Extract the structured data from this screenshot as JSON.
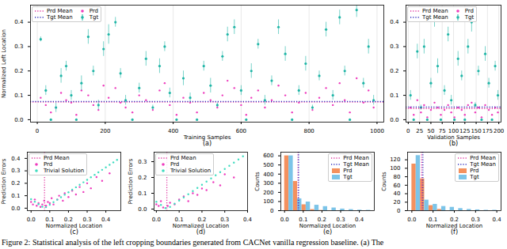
{
  "caption": "Figure 2: Statistical analysis of the left cropping boundaries generated from CACNet vanilla regression baseline. (a) The",
  "chart_data": [
    {
      "type": "scatter",
      "title": "(a)",
      "xlabel": "Training Samples",
      "ylabel": "Normalized Left Location",
      "xlim": [
        -20,
        1020
      ],
      "xticks": [
        0,
        200,
        400,
        600,
        800,
        1000
      ],
      "ylim": [
        -0.01,
        0.47
      ],
      "yticks": [
        {
          "value": 0,
          "label": "0.0"
        },
        0.1,
        0.2,
        0.3,
        0.4
      ],
      "grid": "x",
      "legend": "upper left",
      "series": [
        {
          "name": "Prd Mean",
          "type": "hline",
          "color": "#e0339e",
          "line_style": "dotted",
          "values": [
            0.072
          ]
        },
        {
          "name": "Tgt Mean",
          "type": "hline",
          "color": "#2f2fbf",
          "line_style": "dotted",
          "values": [
            0.075
          ]
        },
        {
          "name": "Prd",
          "type": "scatter",
          "color": "#ee3bbd",
          "marker": "circle",
          "x": [
            10,
            25,
            40,
            55,
            70,
            85,
            100,
            115,
            130,
            150,
            165,
            180,
            195,
            210,
            230,
            245,
            260,
            280,
            300,
            320,
            340,
            360,
            375,
            390,
            410,
            430,
            450,
            470,
            490,
            510,
            530,
            545,
            560,
            580,
            600,
            615,
            630,
            650,
            670,
            690,
            710,
            730,
            750,
            770,
            790,
            810,
            830,
            850,
            870,
            890,
            905,
            920,
            940,
            960,
            975,
            990
          ],
          "values": [
            0.09,
            0.06,
            0.03,
            0.05,
            0.11,
            0.08,
            0.07,
            0.02,
            0.12,
            0.1,
            0.06,
            0.04,
            0.14,
            0.09,
            0.13,
            0.07,
            0.05,
            0.03,
            0.1,
            0.08,
            0.04,
            0.12,
            0.15,
            0.06,
            0.02,
            0.09,
            0.07,
            0.03,
            0.11,
            0.08,
            0.05,
            0.1,
            0.16,
            0.13,
            0.06,
            0.02,
            0.09,
            0.12,
            0.05,
            0.08,
            0.14,
            0.1,
            0.03,
            0.07,
            0.11,
            0.04,
            0.09,
            0.13,
            0.06,
            0.15,
            0.08,
            0.03,
            0.17,
            0.07,
            0.12,
            0.05
          ]
        },
        {
          "name": "Tgt",
          "type": "errorbar",
          "color": "#1fb5a6",
          "marker": "circle",
          "x": [
            10,
            25,
            40,
            55,
            70,
            85,
            100,
            115,
            130,
            150,
            165,
            180,
            195,
            210,
            230,
            245,
            260,
            280,
            300,
            320,
            340,
            360,
            375,
            390,
            410,
            430,
            450,
            470,
            490,
            510,
            530,
            545,
            560,
            580,
            600,
            615,
            630,
            650,
            670,
            690,
            710,
            730,
            750,
            770,
            790,
            810,
            830,
            850,
            870,
            890,
            905,
            920,
            940,
            960,
            975,
            990
          ],
          "values": [
            0.33,
            0.12,
            0,
            0.05,
            0.18,
            0.22,
            0.1,
            0,
            0.15,
            0.34,
            0.2,
            0.06,
            0.29,
            0.35,
            0.4,
            0.19,
            0.08,
            0,
            0.13,
            0.25,
            0.05,
            0.22,
            0.3,
            0.11,
            0,
            0.17,
            0.09,
            0,
            0.22,
            0.14,
            0.06,
            0.26,
            0.35,
            0.38,
            0.12,
            0,
            0.2,
            0.31,
            0.08,
            0.16,
            0.38,
            0.27,
            0,
            0.12,
            0.23,
            0.05,
            0.18,
            0.37,
            0.1,
            0.42,
            0.2,
            0,
            0.45,
            0.15,
            0.3,
            0.08
          ],
          "errors": [
            0.01,
            0.02,
            0,
            0.02,
            0.03,
            0.02,
            0.02,
            0,
            0.03,
            0.03,
            0.02,
            0.02,
            0.03,
            0.04,
            0.02,
            0.02,
            0.02,
            0,
            0.02,
            0.03,
            0.01,
            0.03,
            0.02,
            0.02,
            0,
            0.03,
            0.02,
            0,
            0.02,
            0.03,
            0.01,
            0.02,
            0.03,
            0.03,
            0.02,
            0,
            0.03,
            0.02,
            0.02,
            0.02,
            0.03,
            0.03,
            0,
            0.02,
            0.03,
            0.01,
            0.02,
            0.03,
            0.02,
            0.03,
            0.02,
            0,
            0.03,
            0.02,
            0.03,
            0.02
          ]
        }
      ]
    },
    {
      "type": "scatter",
      "title": "(b)",
      "xlabel": "Validation Samples",
      "xlim": [
        -5,
        205
      ],
      "xticks": [
        0,
        25,
        50,
        75,
        100,
        125,
        150,
        175,
        200
      ],
      "ylim": [
        -0.01,
        0.47
      ],
      "yticks": [
        {
          "value": 0,
          "label": "0.0"
        },
        0.1,
        0.2,
        0.3,
        0.4
      ],
      "grid": "x",
      "legend": "upper left",
      "series": [
        {
          "name": "Prd Mean",
          "type": "hline",
          "color": "#e0339e",
          "line_style": "dotted",
          "values": [
            0.046
          ]
        },
        {
          "name": "Tgt Mean",
          "type": "hline",
          "color": "#2f2fbf",
          "line_style": "dotted",
          "values": [
            0.052
          ]
        },
        {
          "name": "Prd",
          "type": "scatter",
          "color": "#ee3bbd",
          "marker": "circle",
          "x": [
            5,
            12,
            20,
            28,
            35,
            42,
            50,
            58,
            65,
            72,
            80,
            88,
            95,
            102,
            110,
            118,
            125,
            132,
            140,
            148,
            155,
            162,
            170,
            178,
            185,
            192,
            198
          ],
          "values": [
            0.05,
            0.02,
            0.08,
            0.03,
            0.06,
            0.01,
            0.04,
            0.07,
            0.05,
            0.02,
            0.04,
            0.06,
            0.03,
            0.01,
            0.05,
            0.04,
            0.02,
            0.06,
            0.07,
            0.03,
            0.05,
            0.01,
            0.06,
            0.04,
            0.02,
            0.05,
            0.03
          ]
        },
        {
          "name": "Tgt",
          "type": "errorbar",
          "color": "#1fb5a6",
          "marker": "circle",
          "x": [
            5,
            12,
            20,
            28,
            35,
            42,
            50,
            58,
            65,
            72,
            80,
            88,
            95,
            102,
            110,
            118,
            125,
            132,
            140,
            148,
            155,
            162,
            170,
            178,
            185,
            192,
            198
          ],
          "values": [
            0.1,
            0,
            0.28,
            0.05,
            0.3,
            0,
            0.15,
            0.42,
            0.22,
            0,
            0.12,
            0.35,
            0.08,
            0,
            0.25,
            0.18,
            0,
            0.3,
            0.4,
            0.06,
            0.2,
            0,
            0.27,
            0.15,
            0,
            0.22,
            0.1
          ],
          "errors": [
            0.02,
            0,
            0.03,
            0.01,
            0.03,
            0,
            0.02,
            0.04,
            0.03,
            0,
            0.02,
            0.03,
            0.02,
            0,
            0.03,
            0.02,
            0,
            0.03,
            0.04,
            0.01,
            0.02,
            0,
            0.03,
            0.02,
            0,
            0.02,
            0.02
          ]
        }
      ]
    },
    {
      "type": "scatter",
      "title": "(c)",
      "xlabel": "Normalized Location",
      "ylabel": "Prediction Errors",
      "xlim": [
        -0.02,
        0.48
      ],
      "xticks": [
        {
          "value": 0,
          "label": "0.0"
        },
        0.1,
        0.2,
        0.3,
        0.4
      ],
      "ylim": [
        -0.02,
        0.45
      ],
      "yticks": [
        {
          "value": 0,
          "label": "0.0"
        },
        0.1,
        0.2,
        0.3,
        0.4
      ],
      "legend": "upper left",
      "series": [
        {
          "name": "Prd Mean",
          "type": "vline",
          "color": "#e0339e",
          "line_style": "dotted",
          "values": [
            0.072
          ]
        },
        {
          "name": "Prd",
          "type": "scatter",
          "color": "#ee3bbd",
          "marker": "circle",
          "x": [
            0,
            0.01,
            0.02,
            0.03,
            0.04,
            0.05,
            0.06,
            0.07,
            0.08,
            0.09,
            0.1,
            0.11,
            0.12,
            0.14,
            0.15,
            0.17,
            0.18,
            0.2,
            0.22,
            0.24,
            0.26,
            0.28,
            0.3,
            0.32,
            0.35,
            0.38,
            0.42
          ],
          "values": [
            0.05,
            0.03,
            0.07,
            0.02,
            0.04,
            0.01,
            0.03,
            0.06,
            0.02,
            0.05,
            0.04,
            0.08,
            0.03,
            0.07,
            0.1,
            0.06,
            0.12,
            0.09,
            0.14,
            0.11,
            0.17,
            0.13,
            0.2,
            0.16,
            0.25,
            0.22,
            0.28
          ]
        },
        {
          "name": "Trivial Solution",
          "type": "scatter",
          "color": "#3fdcc0",
          "marker": "circle",
          "x": [
            0,
            0.02,
            0.04,
            0.06,
            0.08,
            0.1,
            0.12,
            0.14,
            0.16,
            0.18,
            0.2,
            0.22,
            0.24,
            0.26,
            0.28,
            0.3,
            0.32,
            0.34,
            0.36,
            0.38,
            0.4,
            0.42,
            0.44,
            0.46
          ],
          "values": [
            0.072,
            0.052,
            0.032,
            0.012,
            0.008,
            0.028,
            0.048,
            0.068,
            0.088,
            0.108,
            0.128,
            0.148,
            0.168,
            0.188,
            0.208,
            0.228,
            0.248,
            0.268,
            0.288,
            0.308,
            0.328,
            0.348,
            0.368,
            0.388
          ]
        }
      ]
    },
    {
      "type": "scatter",
      "title": "(d)",
      "xlabel": "Normalized Location",
      "ylabel": "Prediction Errors",
      "xlim": [
        -0.01,
        0.4
      ],
      "xticks": [
        {
          "value": 0,
          "label": "0.0"
        },
        0.1,
        0.2,
        0.3,
        0.4
      ],
      "ylim": [
        -0.01,
        0.36
      ],
      "yticks": [
        {
          "value": 0,
          "label": "0.0"
        },
        0.1,
        0.2,
        0.3
      ],
      "legend": "upper left",
      "series": [
        {
          "name": "Prd Mean",
          "type": "vline",
          "color": "#e0339e",
          "line_style": "dotted",
          "values": [
            0.046
          ]
        },
        {
          "name": "Prd",
          "type": "scatter",
          "color": "#ee3bbd",
          "marker": "circle",
          "x": [
            0,
            0.01,
            0.02,
            0.03,
            0.05,
            0.06,
            0.08,
            0.1,
            0.12,
            0.14,
            0.16,
            0.18,
            0.2,
            0.22,
            0.25,
            0.28,
            0.3,
            0.34
          ],
          "values": [
            0.03,
            0.02,
            0.05,
            0.01,
            0.02,
            0.04,
            0.03,
            0.06,
            0.08,
            0.05,
            0.1,
            0.09,
            0.13,
            0.12,
            0.17,
            0.15,
            0.22,
            0.2
          ]
        },
        {
          "name": "Trivial Solution",
          "type": "scatter",
          "color": "#3fdcc0",
          "marker": "circle",
          "x": [
            0,
            0.02,
            0.04,
            0.06,
            0.08,
            0.1,
            0.12,
            0.14,
            0.16,
            0.18,
            0.2,
            0.22,
            0.24,
            0.26,
            0.28,
            0.3,
            0.32,
            0.34,
            0.36,
            0.38
          ],
          "values": [
            0.046,
            0.026,
            0.006,
            0.014,
            0.034,
            0.054,
            0.074,
            0.094,
            0.114,
            0.134,
            0.154,
            0.174,
            0.194,
            0.214,
            0.234,
            0.254,
            0.274,
            0.294,
            0.314,
            0.334
          ]
        }
      ]
    },
    {
      "type": "histogram",
      "title": "(e)",
      "xlabel": "Normalized Location",
      "ylabel": "Counts",
      "xlim": [
        -0.02,
        0.48
      ],
      "xticks": [
        {
          "value": 0,
          "label": "0.0"
        },
        0.1,
        0.2,
        0.3,
        0.4
      ],
      "ylim": [
        0,
        640
      ],
      "yticks": [
        0,
        100,
        200,
        300,
        400,
        500,
        600
      ],
      "legend": "upper right",
      "bins": [
        0,
        0.046,
        0.092,
        0.138,
        0.184,
        0.23,
        0.276,
        0.322,
        0.368,
        0.414,
        0.46
      ],
      "series": [
        {
          "name": "Prd Mean",
          "type": "vline",
          "color": "#e0339e",
          "line_style": "dotted",
          "values": [
            0.072
          ]
        },
        {
          "name": "Tgt Mean",
          "type": "vline",
          "color": "#2f2fbf",
          "line_style": "dotted",
          "values": [
            0.075
          ]
        },
        {
          "name": "Prd",
          "type": "bar",
          "color": "#f4915e",
          "values": [
            600,
            320,
            65,
            12,
            3,
            0,
            0,
            0,
            0,
            0
          ]
        },
        {
          "name": "Tgt",
          "type": "bar",
          "color": "#7cc4e8",
          "values": [
            600,
            130,
            95,
            60,
            45,
            30,
            18,
            12,
            6,
            4
          ]
        }
      ]
    },
    {
      "type": "histogram",
      "title": "(f)",
      "xlabel": "Normalized Location",
      "ylabel": "Counts",
      "xlim": [
        -0.02,
        0.42
      ],
      "xticks": [
        {
          "value": 0,
          "label": "0.0"
        },
        0.1,
        0.2,
        0.3,
        0.4
      ],
      "ylim": [
        0,
        138
      ],
      "yticks": [
        0,
        20,
        40,
        60,
        80,
        100,
        120
      ],
      "legend": "upper right",
      "bins": [
        0,
        0.04,
        0.08,
        0.12,
        0.16,
        0.2,
        0.24,
        0.28,
        0.32,
        0.36,
        0.4
      ],
      "series": [
        {
          "name": "Prd Mean",
          "type": "vline",
          "color": "#e0339e",
          "line_style": "dotted",
          "values": [
            0.046
          ]
        },
        {
          "name": "Tgt Mean",
          "type": "vline",
          "color": "#2f2fbf",
          "line_style": "dotted",
          "values": [
            0.052
          ]
        },
        {
          "name": "Prd",
          "type": "bar",
          "color": "#f4915e",
          "values": [
            110,
            75,
            12,
            3,
            0,
            0,
            0,
            0,
            0,
            0
          ]
        },
        {
          "name": "Tgt",
          "type": "bar",
          "color": "#7cc4e8",
          "values": [
            130,
            25,
            15,
            10,
            8,
            5,
            3,
            2,
            1,
            1
          ]
        }
      ]
    }
  ]
}
